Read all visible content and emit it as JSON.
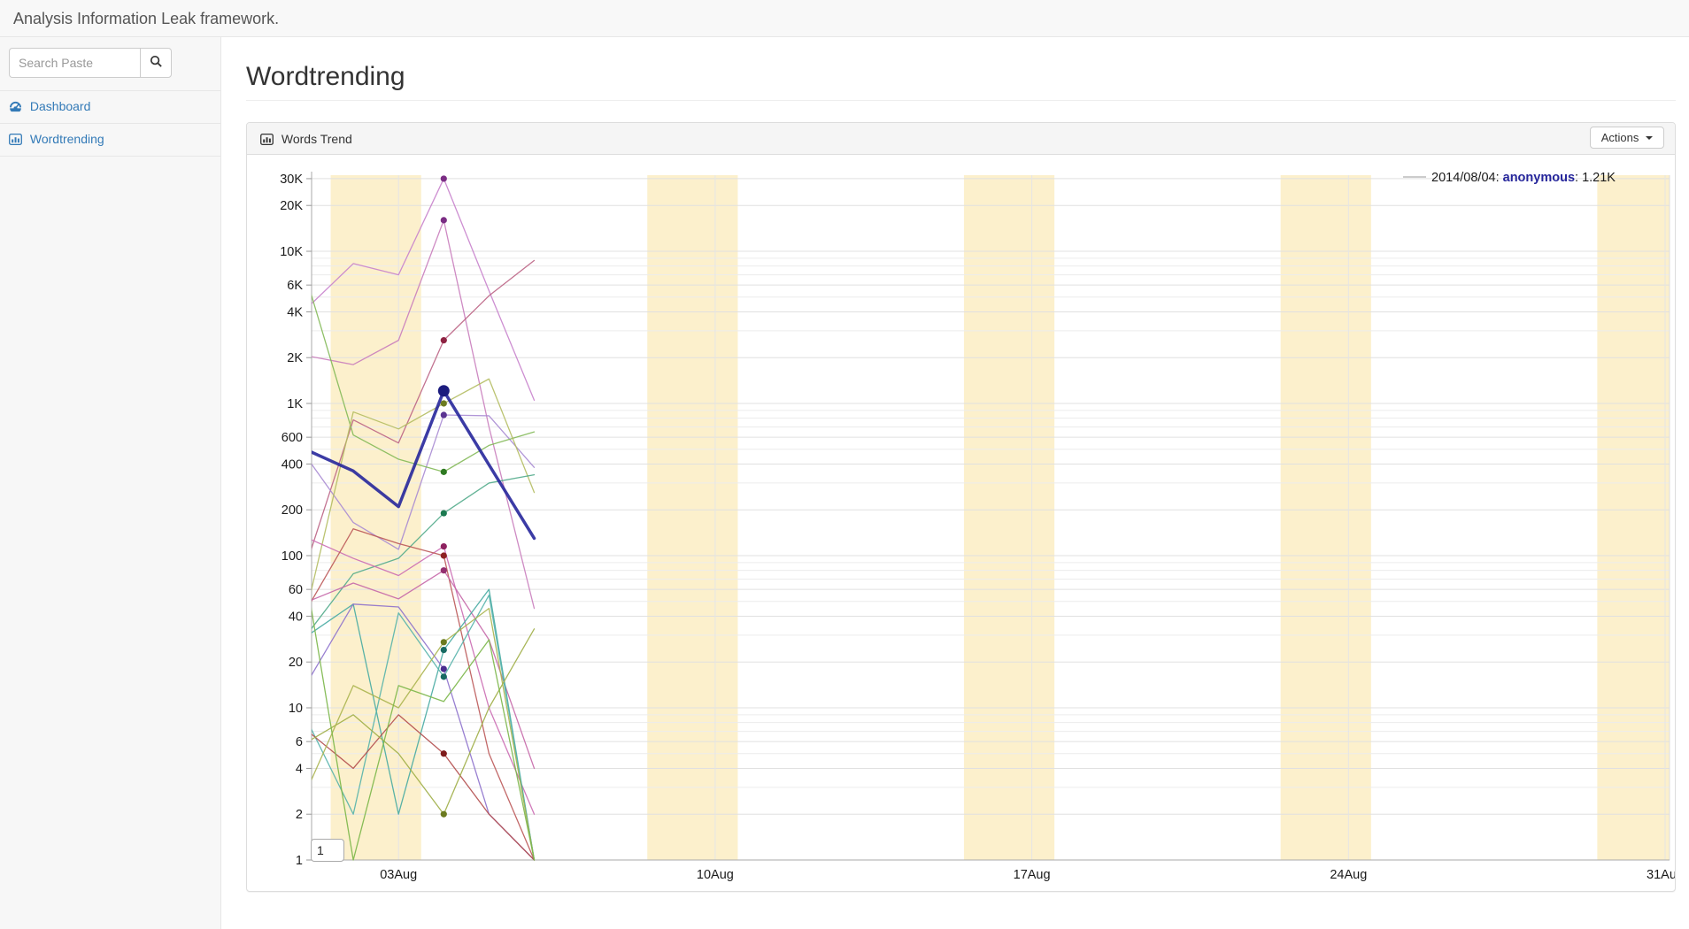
{
  "app": {
    "title": "Analysis Information Leak framework."
  },
  "sidebar": {
    "search": {
      "placeholder": "Search Paste",
      "button_icon": "magnifier-icon"
    },
    "items": [
      {
        "label": "Dashboard",
        "icon": "dashboard-gauge-icon"
      },
      {
        "label": "Wordtrending",
        "icon": "bar-chart-icon"
      }
    ]
  },
  "page": {
    "title": "Wordtrending"
  },
  "panel": {
    "title": "Words Trend",
    "icon": "bar-chart-icon",
    "actions_label": "Actions"
  },
  "chart_data": {
    "type": "line",
    "title": "Words Trend",
    "y_scale": "log",
    "y_domain": [
      1,
      34000
    ],
    "x_domain_days_august_2014": [
      1,
      31.1
    ],
    "grid": true,
    "x_ticks": [
      {
        "label": "03Aug",
        "day": 3
      },
      {
        "label": "10Aug",
        "day": 10
      },
      {
        "label": "17Aug",
        "day": 17
      },
      {
        "label": "24Aug",
        "day": 24
      },
      {
        "label": "31Aug",
        "day": 31
      }
    ],
    "y_ticks": [
      {
        "label": "30K",
        "v": 30000
      },
      {
        "label": "20K",
        "v": 20000
      },
      {
        "label": "10K",
        "v": 10000
      },
      {
        "label": "6K",
        "v": 6000
      },
      {
        "label": "4K",
        "v": 4000
      },
      {
        "label": "2K",
        "v": 2000
      },
      {
        "label": "1K",
        "v": 1000
      },
      {
        "label": "600",
        "v": 600
      },
      {
        "label": "400",
        "v": 400
      },
      {
        "label": "200",
        "v": 200
      },
      {
        "label": "100",
        "v": 100
      },
      {
        "label": "60",
        "v": 60
      },
      {
        "label": "40",
        "v": 40
      },
      {
        "label": "20",
        "v": 20
      },
      {
        "label": "10",
        "v": 10
      },
      {
        "label": "6",
        "v": 6
      },
      {
        "label": "4",
        "v": 4
      },
      {
        "label": "2",
        "v": 2
      },
      {
        "label": "1",
        "v": 1
      }
    ],
    "weekend_bands_days": [
      [
        1.5,
        3.5
      ],
      [
        8.5,
        10.5
      ],
      [
        15.5,
        17.5
      ],
      [
        22.5,
        24.5
      ],
      [
        29.5,
        31.7
      ]
    ],
    "tooltip": {
      "date": "2014/08/04",
      "name": "anonymous",
      "value": "1.21K"
    },
    "corner_input_value": "1",
    "days": [
      1,
      2,
      3,
      4,
      5,
      6
    ],
    "marker_day": 4,
    "series": [
      {
        "id": "series-2",
        "name": "",
        "color": "#c882cc",
        "dot": "#7b2d84",
        "w": 1.3,
        "values": [
          4300,
          8300,
          7000,
          30000,
          5500,
          1050
        ]
      },
      {
        "id": "series-3",
        "name": "",
        "color": "#c97dbd",
        "dot": "#7b2d84",
        "w": 1.3,
        "values": [
          2050,
          1800,
          2600,
          16000,
          700,
          45
        ]
      },
      {
        "id": "series-4",
        "name": "",
        "color": "#bb6384",
        "dot": "#8e2242",
        "w": 1.3,
        "values": [
          95,
          780,
          550,
          2600,
          5100,
          8700
        ]
      },
      {
        "id": "series-5",
        "name": "",
        "color": "#a98bd3",
        "dot": "#5a3391",
        "w": 1.3,
        "values": [
          430,
          165,
          110,
          840,
          830,
          380
        ]
      },
      {
        "id": "series-6",
        "name": "",
        "color": "#83b958",
        "dot": "#2f7a22",
        "w": 1.3,
        "values": [
          6100,
          620,
          430,
          355,
          530,
          650
        ]
      },
      {
        "id": "series-7",
        "name": "",
        "color": "#b4bd62",
        "dot": "#6b7a1f",
        "w": 1.3,
        "values": [
          48,
          880,
          680,
          1000,
          1450,
          260
        ]
      },
      {
        "id": "series-8",
        "name": "",
        "color": "#52ab8b",
        "dot": "#1c7a50",
        "w": 1.3,
        "values": [
          31,
          76,
          96,
          190,
          300,
          340
        ]
      },
      {
        "id": "series-9",
        "name": "",
        "color": "#cb6cb3",
        "dot": "#8e2260",
        "w": 1.3,
        "values": [
          130,
          96,
          74,
          115,
          10,
          2
        ]
      },
      {
        "id": "series-10",
        "name": "",
        "color": "#bb5858",
        "dot": "#8e2222",
        "w": 1.3,
        "values": [
          46,
          150,
          120,
          100,
          5,
          1
        ]
      },
      {
        "id": "series-11",
        "name": "",
        "color": "#c567a8",
        "dot": "#943070",
        "w": 1.3,
        "values": [
          50,
          66,
          52,
          80,
          28,
          4
        ]
      },
      {
        "id": "series-12",
        "name": "",
        "color": "#46aaa2",
        "dot": "#176a62",
        "w": 1.3,
        "values": [
          30,
          48,
          2,
          24,
          60,
          1
        ]
      },
      {
        "id": "series-13",
        "name": "",
        "color": "#55b3ab",
        "dot": "#176a62",
        "w": 1.3,
        "values": [
          8,
          2,
          42,
          16,
          55,
          1
        ]
      },
      {
        "id": "series-14",
        "name": "",
        "color": "#8d71cc",
        "dot": "#4a2d8e",
        "w": 1.3,
        "values": [
          15,
          48,
          46,
          18,
          2,
          1
        ]
      },
      {
        "id": "series-15",
        "name": "",
        "color": "#b24c4c",
        "dot": "#7e1c1c",
        "w": 1.3,
        "values": [
          7,
          4,
          9,
          5,
          2,
          1
        ]
      },
      {
        "id": "series-16",
        "name": "",
        "color": "#9fae46",
        "dot": "#6b7a1f",
        "w": 1.3,
        "values": [
          6,
          9,
          5,
          2,
          10,
          33
        ]
      },
      {
        "id": "series-17",
        "name": "",
        "color": "#aab44e",
        "dot": "#6b7a1f",
        "w": 1.3,
        "values": [
          3,
          14,
          10,
          27,
          45,
          1
        ]
      },
      {
        "id": "series-18",
        "name": "",
        "color": "#7ab648",
        "dot": null,
        "w": 1.3,
        "values": [
          60,
          1,
          14,
          11,
          28,
          1
        ]
      },
      {
        "id": "anonymous",
        "name": "anonymous",
        "color": "#26269b",
        "dot": "#1c1c7e",
        "w": 3.5,
        "values": [
          490,
          360,
          210,
          1210,
          395,
          130
        ]
      }
    ],
    "colors": {
      "weekend_band": "#fcf0cc",
      "grid": "#ececec",
      "grid_major": "#e0e0e0",
      "axis": "#aaaaaa",
      "accent_link": "#337ab7"
    }
  }
}
